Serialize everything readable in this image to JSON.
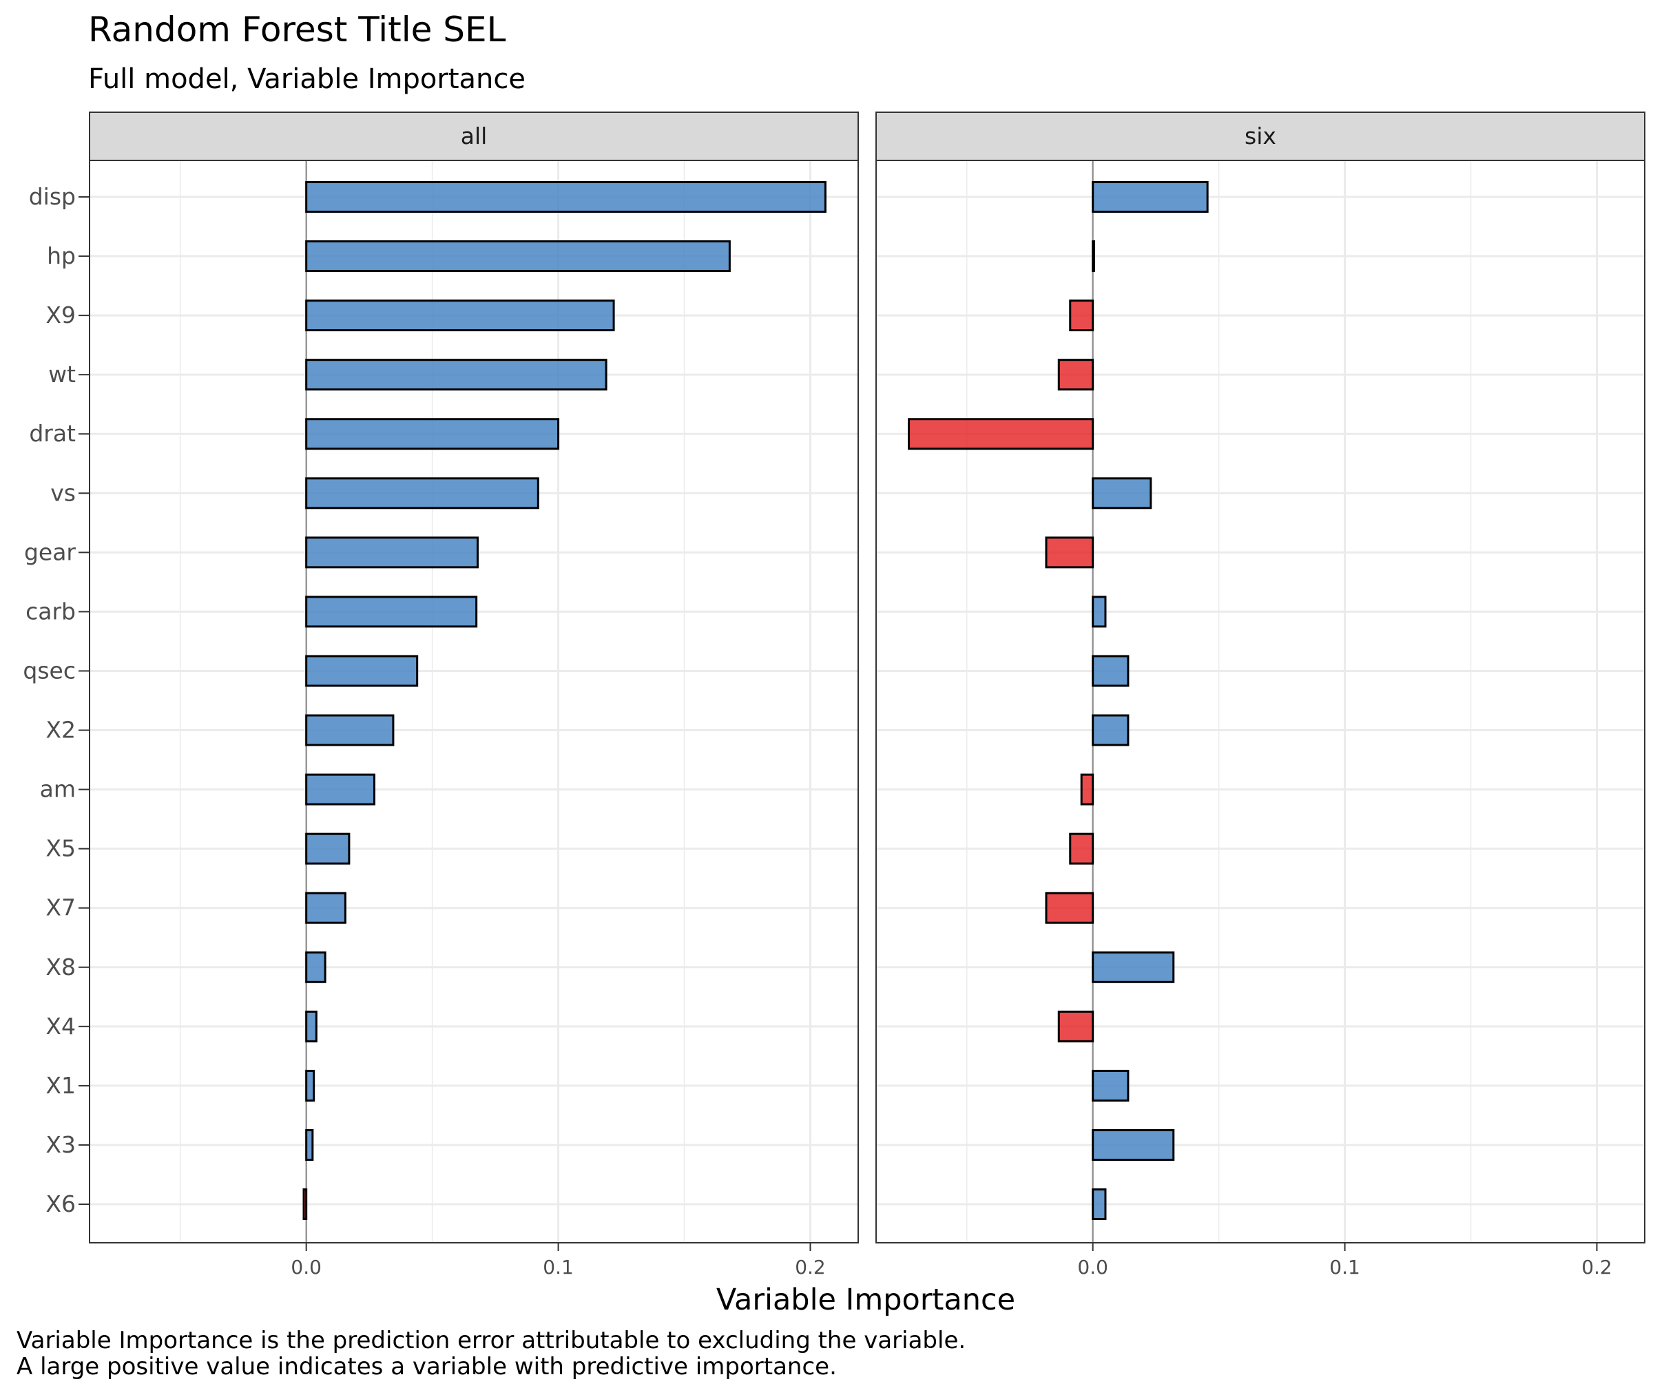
{
  "chart_data": {
    "type": "bar",
    "orientation": "horizontal",
    "title": "Random Forest Title SEL",
    "subtitle": "Full model, Variable Importance",
    "xlabel": "Variable Importance",
    "caption": [
      "Variable Importance is the prediction error attributable to excluding the variable.",
      "A large positive value indicates a variable with predictive importance."
    ],
    "categories": [
      "disp",
      "hp",
      "X9",
      "wt",
      "drat",
      "vs",
      "gear",
      "carb",
      "qsec",
      "X2",
      "am",
      "X5",
      "X7",
      "X8",
      "X4",
      "X1",
      "X3",
      "X6"
    ],
    "xlim": [
      -0.086,
      0.219
    ],
    "xticks": [
      0.0,
      0.1,
      0.2
    ],
    "xtick_labels": [
      "0.0",
      "0.1",
      "0.2"
    ],
    "grid": true,
    "positive_color": "#4a86c4",
    "negative_color": "#e41a1c",
    "panels": [
      {
        "name": "all",
        "values": [
          0.206,
          0.168,
          0.122,
          0.119,
          0.1,
          0.092,
          0.068,
          0.0675,
          0.044,
          0.0345,
          0.027,
          0.017,
          0.0155,
          0.0075,
          0.004,
          0.003,
          0.0025,
          -0.001
        ]
      },
      {
        "name": "six",
        "values": [
          0.0455,
          0.0005,
          -0.009,
          -0.0135,
          -0.073,
          0.023,
          -0.0185,
          0.005,
          0.014,
          0.014,
          -0.0045,
          -0.009,
          -0.0185,
          0.032,
          -0.0135,
          0.014,
          0.032,
          0.005
        ]
      }
    ]
  }
}
